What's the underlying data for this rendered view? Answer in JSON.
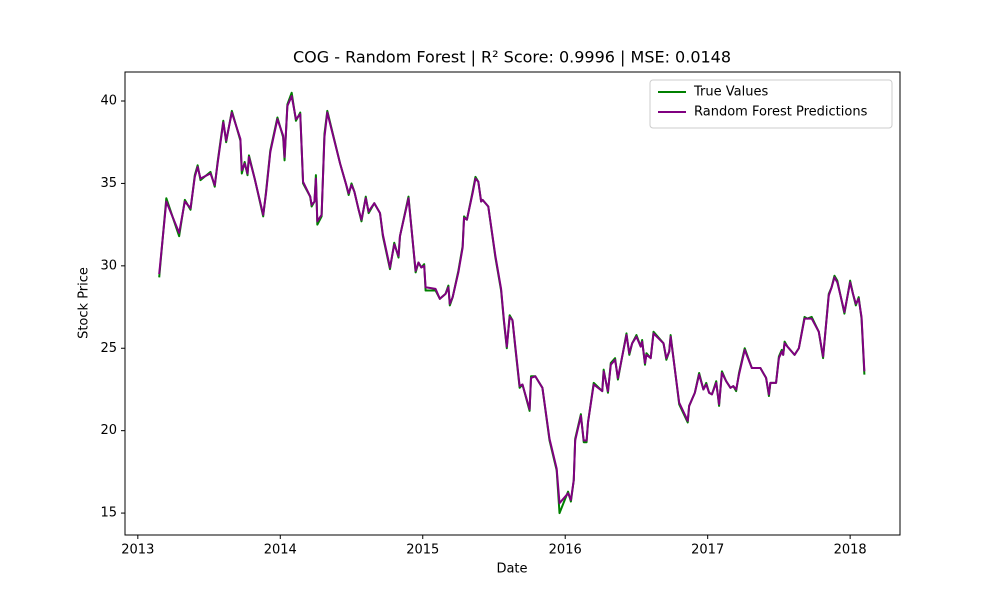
{
  "chart_data": {
    "type": "line",
    "title": "COG - Random Forest | R² Score: 0.9996 | MSE: 0.0148",
    "xlabel": "Date",
    "ylabel": "Stock Price",
    "x": [
      2013.15,
      2013.2,
      2013.29,
      2013.33,
      2013.37,
      2013.4,
      2013.42,
      2013.44,
      2013.51,
      2013.54,
      2013.56,
      2013.6,
      2013.62,
      2013.66,
      2013.72,
      2013.73,
      2013.75,
      2013.77,
      2013.78,
      2013.82,
      2013.88,
      2013.9,
      2013.93,
      2013.98,
      2014.02,
      2014.03,
      2014.05,
      2014.08,
      2014.11,
      2014.14,
      2014.16,
      2014.21,
      2014.22,
      2014.24,
      2014.25,
      2014.26,
      2014.29,
      2014.31,
      2014.33,
      2014.42,
      2014.46,
      2014.48,
      2014.5,
      2014.52,
      2014.55,
      2014.57,
      2014.6,
      2014.62,
      2014.66,
      2014.7,
      2014.72,
      2014.77,
      2014.8,
      2014.83,
      2014.84,
      2014.9,
      2014.95,
      2014.97,
      2014.99,
      2015.01,
      2015.02,
      2015.09,
      2015.12,
      2015.16,
      2015.18,
      2015.19,
      2015.21,
      2015.25,
      2015.28,
      2015.29,
      2015.31,
      2015.35,
      2015.37,
      2015.39,
      2015.41,
      2015.42,
      2015.46,
      2015.51,
      2015.55,
      2015.57,
      2015.59,
      2015.61,
      2015.63,
      2015.65,
      2015.68,
      2015.7,
      2015.75,
      2015.76,
      2015.79,
      2015.84,
      2015.89,
      2015.94,
      2015.96,
      2016.02,
      2016.04,
      2016.06,
      2016.07,
      2016.11,
      2016.13,
      2016.15,
      2016.16,
      2016.2,
      2016.26,
      2016.27,
      2016.3,
      2016.32,
      2016.35,
      2016.37,
      2016.43,
      2016.45,
      2016.47,
      2016.5,
      2016.53,
      2016.54,
      2016.56,
      2016.57,
      2016.6,
      2016.62,
      2016.69,
      2016.71,
      2016.73,
      2016.74,
      2016.8,
      2016.86,
      2016.87,
      2016.91,
      2016.94,
      2016.97,
      2016.99,
      2017.01,
      2017.03,
      2017.06,
      2017.08,
      2017.1,
      2017.13,
      2017.16,
      2017.18,
      2017.2,
      2017.22,
      2017.26,
      2017.31,
      2017.37,
      2017.39,
      2017.41,
      2017.43,
      2017.44,
      2017.48,
      2017.5,
      2017.52,
      2017.53,
      2017.54,
      2017.56,
      2017.61,
      2017.64,
      2017.68,
      2017.7,
      2017.73,
      2017.78,
      2017.81,
      2017.85,
      2017.87,
      2017.89,
      2017.91,
      2017.96,
      2018.0,
      2018.02,
      2018.04,
      2018.06,
      2018.08,
      2018.1
    ],
    "series": [
      {
        "name": "True Values",
        "color": "#008000",
        "values": [
          29.3,
          34.1,
          31.8,
          34.0,
          33.4,
          35.5,
          36.1,
          35.2,
          35.7,
          34.8,
          36.3,
          38.8,
          37.5,
          39.4,
          37.6,
          35.6,
          36.3,
          35.5,
          36.7,
          35.3,
          33.0,
          34.5,
          37.0,
          39.0,
          37.8,
          36.4,
          39.8,
          40.5,
          38.8,
          39.3,
          35.0,
          34.2,
          33.6,
          33.9,
          35.5,
          32.5,
          33.0,
          38.0,
          39.4,
          36.2,
          35.0,
          34.3,
          35.0,
          34.5,
          33.4,
          32.7,
          34.2,
          33.2,
          33.8,
          33.2,
          31.8,
          29.8,
          31.4,
          30.5,
          31.8,
          34.2,
          29.6,
          30.2,
          29.9,
          30.1,
          28.5,
          28.5,
          28.0,
          28.3,
          28.8,
          27.6,
          28.1,
          29.7,
          31.2,
          33.0,
          32.8,
          34.5,
          35.4,
          35.1,
          33.9,
          34.0,
          33.6,
          30.5,
          28.5,
          26.6,
          25.0,
          27.0,
          26.7,
          25.0,
          22.6,
          22.8,
          21.2,
          23.3,
          23.3,
          22.6,
          19.4,
          17.6,
          15.0,
          16.3,
          15.7,
          17.0,
          19.5,
          21.0,
          19.3,
          19.3,
          20.5,
          22.9,
          22.4,
          23.7,
          22.3,
          24.1,
          24.4,
          23.1,
          25.9,
          24.6,
          25.3,
          25.8,
          25.1,
          25.5,
          24.0,
          24.7,
          24.4,
          26.0,
          25.3,
          24.3,
          24.8,
          25.8,
          21.6,
          20.5,
          21.5,
          22.3,
          23.5,
          22.5,
          22.9,
          22.3,
          22.2,
          23.0,
          21.5,
          23.6,
          23.0,
          22.6,
          22.7,
          22.4,
          23.5,
          25.0,
          23.8,
          23.8,
          23.5,
          23.2,
          22.1,
          22.9,
          22.9,
          24.5,
          24.9,
          24.6,
          25.4,
          25.1,
          24.6,
          25.0,
          26.9,
          26.8,
          26.9,
          26.0,
          24.4,
          28.3,
          28.7,
          29.4,
          29.1,
          27.1,
          29.1,
          28.3,
          27.6,
          28.1,
          26.8,
          23.4
        ]
      },
      {
        "name": "Random Forest Predictions",
        "color": "#800080",
        "values": [
          29.5,
          33.9,
          32.0,
          33.9,
          33.5,
          35.4,
          36.0,
          35.3,
          35.6,
          34.9,
          36.2,
          38.7,
          37.6,
          39.3,
          37.7,
          35.8,
          36.2,
          35.6,
          36.6,
          35.3,
          33.1,
          34.4,
          36.9,
          38.9,
          37.9,
          36.6,
          39.7,
          40.3,
          38.9,
          39.2,
          35.1,
          34.2,
          33.7,
          33.9,
          35.3,
          32.7,
          33.1,
          37.8,
          39.3,
          36.2,
          35.0,
          34.4,
          34.9,
          34.5,
          33.4,
          32.8,
          34.1,
          33.3,
          33.8,
          33.2,
          31.9,
          29.9,
          31.3,
          30.6,
          31.8,
          34.1,
          29.7,
          30.2,
          29.9,
          30.0,
          28.7,
          28.6,
          28.0,
          28.3,
          28.7,
          27.7,
          28.1,
          29.6,
          31.1,
          32.9,
          32.8,
          34.4,
          35.3,
          35.1,
          33.9,
          34.0,
          33.6,
          30.6,
          28.6,
          26.7,
          25.1,
          26.9,
          26.7,
          25.1,
          22.7,
          22.8,
          21.3,
          23.2,
          23.3,
          22.6,
          19.5,
          17.7,
          15.6,
          16.2,
          15.8,
          17.0,
          19.4,
          20.9,
          19.4,
          19.4,
          20.5,
          22.8,
          22.4,
          23.6,
          22.4,
          24.0,
          24.3,
          23.2,
          25.8,
          24.7,
          25.3,
          25.7,
          25.1,
          25.4,
          24.1,
          24.6,
          24.4,
          25.9,
          25.3,
          24.4,
          24.8,
          25.7,
          21.7,
          20.6,
          21.5,
          22.3,
          23.4,
          22.5,
          22.8,
          22.3,
          22.2,
          22.9,
          21.6,
          23.5,
          23.0,
          22.6,
          22.7,
          22.5,
          23.4,
          24.9,
          23.8,
          23.8,
          23.5,
          23.2,
          22.2,
          22.9,
          22.9,
          24.4,
          24.8,
          24.6,
          25.3,
          25.1,
          24.6,
          25.0,
          26.8,
          26.8,
          26.8,
          26.0,
          24.5,
          28.2,
          28.7,
          29.3,
          29.0,
          27.2,
          29.0,
          28.3,
          27.7,
          28.0,
          26.9,
          23.6
        ]
      }
    ],
    "xlim": [
      2012.91,
      2018.35
    ],
    "xticks": [
      2013,
      2014,
      2015,
      2016,
      2017,
      2018
    ],
    "ylim": [
      13.67,
      41.76
    ],
    "yticks": [
      15,
      20,
      25,
      30,
      35,
      40
    ],
    "legend": "upper right"
  }
}
